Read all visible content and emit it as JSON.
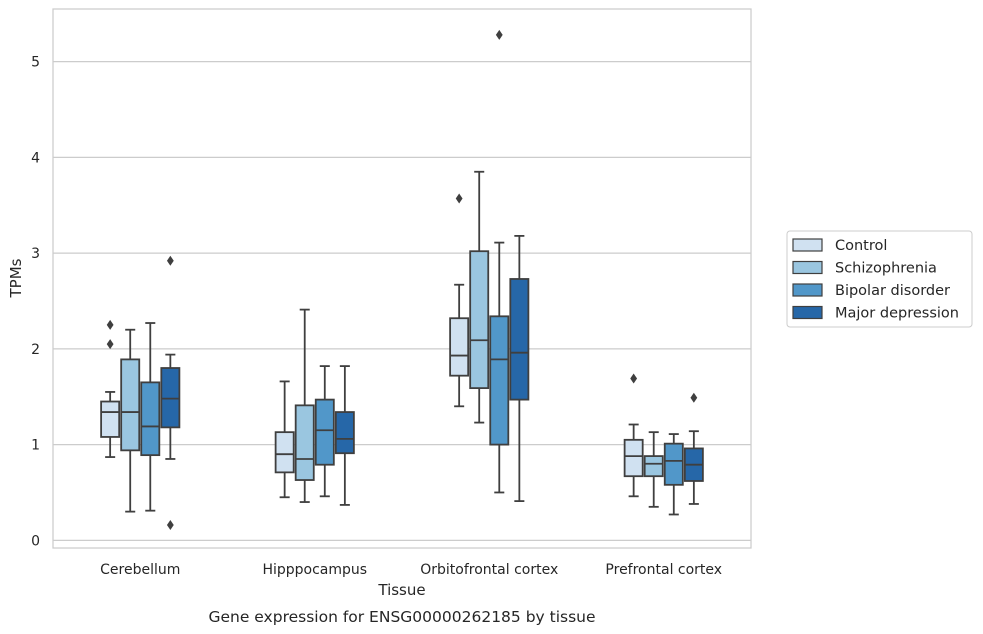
{
  "chart_data": {
    "type": "box",
    "title": "",
    "caption": "Gene expression for ENSG00000262185 by tissue",
    "xlabel": "Tissue",
    "ylabel": "TPMs",
    "ylim": [
      -0.08,
      5.55
    ],
    "yticks": [
      0,
      1,
      2,
      3,
      4,
      5
    ],
    "grid": "horizontal",
    "legend_position": "right",
    "categories": [
      "Cerebellum",
      "Hipppocampus",
      "Orbitofrontal cortex",
      "Prefrontal cortex"
    ],
    "series": [
      {
        "name": "Control",
        "color": "#d0e1f1",
        "boxes": [
          {
            "whislo": 0.87,
            "q1": 1.08,
            "med": 1.34,
            "q3": 1.45,
            "whishi": 1.55,
            "fliers": [
              2.25,
              2.05
            ]
          },
          {
            "whislo": 0.45,
            "q1": 0.71,
            "med": 0.9,
            "q3": 1.13,
            "whishi": 1.66,
            "fliers": []
          },
          {
            "whislo": 1.4,
            "q1": 1.72,
            "med": 1.93,
            "q3": 2.32,
            "whishi": 2.67,
            "fliers": [
              3.57
            ]
          },
          {
            "whislo": 0.46,
            "q1": 0.67,
            "med": 0.88,
            "q3": 1.05,
            "whishi": 1.21,
            "fliers": [
              1.69
            ]
          }
        ]
      },
      {
        "name": "Schizophrenia",
        "color": "#9ac6e0",
        "boxes": [
          {
            "whislo": 0.3,
            "q1": 0.94,
            "med": 1.34,
            "q3": 1.89,
            "whishi": 2.2,
            "fliers": []
          },
          {
            "whislo": 0.4,
            "q1": 0.63,
            "med": 0.85,
            "q3": 1.41,
            "whishi": 2.41,
            "fliers": []
          },
          {
            "whislo": 1.23,
            "q1": 1.59,
            "med": 2.09,
            "q3": 3.02,
            "whishi": 3.85,
            "fliers": []
          },
          {
            "whislo": 0.35,
            "q1": 0.67,
            "med": 0.8,
            "q3": 0.88,
            "whishi": 1.13,
            "fliers": []
          }
        ]
      },
      {
        "name": "Bipolar disorder",
        "color": "#5197c9",
        "boxes": [
          {
            "whislo": 0.31,
            "q1": 0.89,
            "med": 1.19,
            "q3": 1.65,
            "whishi": 2.27,
            "fliers": []
          },
          {
            "whislo": 0.46,
            "q1": 0.79,
            "med": 1.15,
            "q3": 1.47,
            "whishi": 1.82,
            "fliers": []
          },
          {
            "whislo": 0.5,
            "q1": 1.0,
            "med": 1.89,
            "q3": 2.34,
            "whishi": 3.11,
            "fliers": [
              5.28
            ]
          },
          {
            "whislo": 0.27,
            "q1": 0.58,
            "med": 0.83,
            "q3": 1.01,
            "whishi": 1.11,
            "fliers": []
          }
        ]
      },
      {
        "name": "Major depression",
        "color": "#2667a8",
        "boxes": [
          {
            "whislo": 0.85,
            "q1": 1.18,
            "med": 1.48,
            "q3": 1.8,
            "whishi": 1.94,
            "fliers": [
              2.92,
              0.16
            ]
          },
          {
            "whislo": 0.37,
            "q1": 0.91,
            "med": 1.06,
            "q3": 1.34,
            "whishi": 1.82,
            "fliers": []
          },
          {
            "whislo": 0.41,
            "q1": 1.47,
            "med": 1.96,
            "q3": 2.73,
            "whishi": 3.18,
            "fliers": []
          },
          {
            "whislo": 0.38,
            "q1": 0.62,
            "med": 0.79,
            "q3": 0.96,
            "whishi": 1.14,
            "fliers": [
              1.49
            ]
          }
        ]
      }
    ]
  }
}
